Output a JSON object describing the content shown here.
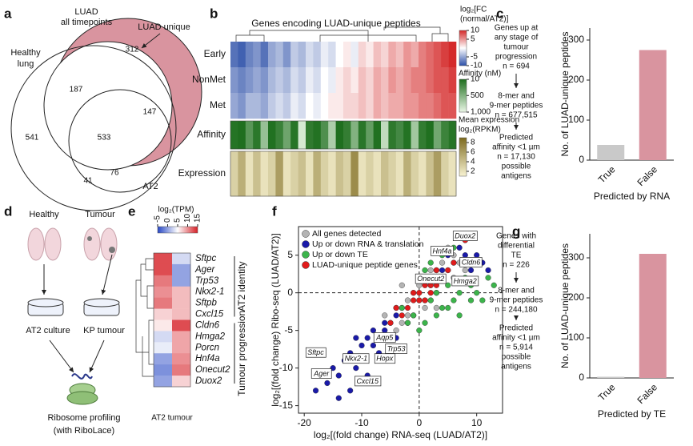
{
  "panels": {
    "a": {
      "label": "a",
      "luad_all": [
        "LUAD",
        "all timepoints"
      ],
      "luad_unique": "LUAD unique",
      "healthy": [
        "Healthy",
        "lung"
      ],
      "at2": "AT2",
      "counts": [
        312,
        187,
        147,
        533,
        541,
        41,
        76
      ]
    },
    "c": {
      "flow": [
        [
          "Genes up at",
          "any stage of",
          "tumour",
          "progression",
          "n = 694"
        ],
        [
          "8-mer and",
          "9-mer peptides",
          "n = 677,515"
        ],
        [
          "Predicted",
          "affinity <1 µm",
          "n = 17,130",
          "possible",
          "antigens"
        ]
      ]
    },
    "d": {
      "label": "d",
      "healthy": "Healthy",
      "tumour": "Tumour",
      "culture": "AT2 culture",
      "kp": "KP tumour",
      "profiling": [
        "Ribosome profiling",
        "(with RiboLace)"
      ]
    },
    "g": {
      "flow": [
        [
          "Genes with",
          "differential",
          "TE",
          "n = 226"
        ],
        [
          "8-mer and",
          "9-mer peptides",
          "n = 244,180"
        ],
        [
          "Predicted",
          "affinity <1 µm",
          "n = 5,914",
          "possible",
          "antigens"
        ]
      ]
    }
  },
  "chart_data": [
    {
      "panel": "b",
      "type": "heatmap",
      "title": "Genes encoding LUAD-unique peptides",
      "rows": [
        "Early",
        "NonMet",
        "Met"
      ],
      "values": [
        [
          -8,
          -9,
          -7,
          -6,
          -8,
          -5,
          -4,
          -6,
          -3,
          -4,
          -2,
          -3,
          -1,
          -2,
          0,
          1,
          -1,
          2,
          1,
          3,
          2,
          4,
          3,
          5,
          4,
          6,
          7,
          8,
          9,
          10
        ],
        [
          -6,
          -7,
          -6,
          -5,
          -6,
          -4,
          -3,
          -4,
          -2,
          -3,
          -1,
          -2,
          0,
          -1,
          1,
          2,
          1,
          3,
          2,
          4,
          3,
          5,
          4,
          5,
          6,
          6,
          7,
          8,
          8,
          9
        ],
        [
          -5,
          -6,
          -4,
          -4,
          -5,
          -3,
          -2,
          -3,
          -1,
          -2,
          0,
          -1,
          0,
          1,
          1,
          2,
          2,
          3,
          2,
          4,
          3,
          4,
          4,
          5,
          5,
          6,
          6,
          7,
          8,
          8
        ]
      ],
      "scale": {
        "title": [
          "log₂[FC",
          "(normal/AT2)]"
        ],
        "lim": [
          -10,
          10
        ],
        "ticks": [
          10,
          5,
          -5,
          -10
        ],
        "colors": [
          "#2c4fa8",
          "#ffffff",
          "#d42a2a"
        ]
      },
      "tracks": [
        {
          "label": "Affinity",
          "values": [
            50,
            20,
            300,
            80,
            600,
            30,
            150,
            400,
            60,
            900,
            100,
            40,
            250,
            700,
            20,
            120,
            500,
            70,
            350,
            30,
            800,
            90,
            200,
            45,
            650,
            110,
            25,
            420,
            160,
            60
          ],
          "scale": {
            "title": [
              "Affinity (nM)"
            ],
            "lim": [
              10,
              1000
            ],
            "ticks": [
              10,
              500,
              {
                "value": 1000,
                "label": "1,000"
              }
            ],
            "colors": [
              "#1d6e1d",
              "#eaf7e6"
            ]
          }
        },
        {
          "label": "Expression",
          "values": [
            3,
            5,
            2,
            4,
            2,
            3,
            6,
            2,
            3,
            4,
            2,
            5,
            3,
            2,
            4,
            3,
            7,
            2,
            3,
            2,
            4,
            3,
            2,
            5,
            3,
            2,
            4,
            6,
            3,
            2
          ],
          "scale": {
            "title": [
              "Mean expression",
              "log₂(RPKM)"
            ],
            "lim": [
              1,
              9
            ],
            "ticks": [
              8,
              6,
              4,
              2
            ],
            "colors": [
              "#f8f3d2",
              "#7d6a1e"
            ]
          }
        }
      ]
    },
    {
      "panel": "c",
      "type": "bar",
      "categories": [
        "True",
        "False"
      ],
      "values": [
        38,
        275
      ],
      "colors": [
        "#c9c9c9",
        "#d9949f"
      ],
      "ylim": [
        0,
        330
      ],
      "yticks": [
        0,
        100,
        200,
        300
      ],
      "ylabel": "No. of LUAD-unique peptides",
      "xlabel": "Predicted by RNA"
    },
    {
      "panel": "e",
      "type": "heatmap",
      "title": "log₂(TPM)",
      "column_label": "AT2 tumour",
      "rows": [
        "Sftpc",
        "Ager",
        "Trp53",
        "Nkx2-1",
        "Sftpb",
        "Cxcl15",
        "Cldn6",
        "Hmga2",
        "Porcn",
        "Hnf4a",
        "Onecut2",
        "Duox2"
      ],
      "values": [
        [
          13,
          3
        ],
        [
          13,
          0
        ],
        [
          11,
          0
        ],
        [
          10,
          8
        ],
        [
          11,
          8
        ],
        [
          7,
          8
        ],
        [
          6,
          13
        ],
        [
          3,
          9
        ],
        [
          4,
          9
        ],
        [
          0,
          10
        ],
        [
          -1,
          11
        ],
        [
          0,
          7
        ]
      ],
      "scale": {
        "lim": [
          -5,
          15
        ],
        "ticks": [
          -5,
          0,
          5,
          10,
          15
        ],
        "colors": [
          "#2747c4",
          "#ffffff",
          "#d61f26"
        ]
      },
      "groups": [
        "AT2 identity",
        "Tumour progression"
      ]
    },
    {
      "panel": "f",
      "type": "scatter",
      "xlabel": "log₂[(fold change) RNA-seq (LUAD/AT2)]",
      "ylabel": "log₂[(fold change) Ribo-seq (LUAD/AT2)]",
      "xlim": [
        -21,
        14.5
      ],
      "ylim": [
        -16,
        8.8
      ],
      "xticks": [
        -20,
        -10,
        0,
        10
      ],
      "yticks": [
        -15,
        -10,
        -5,
        0,
        5
      ],
      "series": [
        {
          "name": "All genes detected",
          "color": "#b4b4b4",
          "x": [
            -6,
            -5,
            -4,
            -3,
            -2,
            -1,
            0,
            1,
            2,
            3,
            4,
            5,
            6,
            -3,
            -2,
            1,
            2,
            3,
            -1,
            0,
            4,
            5,
            7,
            8,
            -4,
            2,
            3,
            -2,
            6,
            1
          ],
          "y": [
            -3,
            -6,
            -2,
            -4,
            -1,
            -3,
            1,
            2,
            -1,
            2,
            4,
            3,
            5,
            1,
            -4,
            -2,
            3,
            0,
            0,
            -1,
            2,
            6,
            4,
            3,
            -5,
            1,
            -2,
            -3,
            2,
            -1
          ]
        },
        {
          "name": "Up or down RNA & translation",
          "color": "#1a1aa8",
          "x": [
            -18,
            -16,
            -15,
            -14,
            -13,
            -12,
            -11,
            -10,
            -10,
            -9,
            -8,
            -8,
            -7,
            -6,
            -6,
            -5,
            -4,
            -4,
            -3,
            3,
            4,
            5,
            6,
            7,
            8,
            8,
            9,
            10,
            11,
            12,
            -12,
            -9,
            -7,
            -11,
            -14
          ],
          "y": [
            -13,
            -12,
            -10,
            -11,
            -9,
            -8,
            -10,
            -7,
            -9,
            -6,
            -7,
            -5,
            -8,
            -5,
            -4,
            -4,
            -3,
            -6,
            -2,
            3,
            3,
            5,
            4,
            6,
            5,
            7,
            3,
            5,
            4,
            3,
            -13,
            -11,
            -9,
            -6,
            -14
          ]
        },
        {
          "name": "Up or down TE",
          "color": "#3cb44b",
          "x": [
            2,
            3,
            4,
            5,
            6,
            7,
            8,
            9,
            10,
            11,
            12,
            13,
            1,
            2,
            -1,
            -2,
            -3,
            0,
            1,
            3,
            5,
            7,
            9,
            4,
            6
          ],
          "y": [
            -1,
            0,
            -2,
            1,
            -1,
            0,
            2,
            1,
            0,
            -1,
            2,
            1,
            3,
            4,
            -3,
            -4,
            -2,
            -5,
            -4,
            -3,
            -2,
            -3,
            -1,
            5,
            6
          ]
        },
        {
          "name": "LUAD-unique peptide genes",
          "color": "#e01b1b",
          "x": [
            0,
            1,
            2,
            3,
            -1,
            -2,
            1,
            2,
            3,
            4,
            -3,
            -4,
            2,
            5,
            6,
            -1,
            0,
            8,
            3,
            -5
          ],
          "y": [
            0,
            1,
            2,
            1,
            -1,
            -2,
            -1,
            0,
            3,
            2,
            -3,
            -2,
            1,
            3,
            4,
            0,
            -1,
            7,
            2,
            -4
          ]
        }
      ],
      "annotations": [
        {
          "text": "Duox2",
          "x": 8,
          "y": 7.5
        },
        {
          "text": "Hnf4a",
          "x": 4,
          "y": 5.5
        },
        {
          "text": "Cldn6",
          "x": 9,
          "y": 4
        },
        {
          "text": "Onecut2",
          "x": 2,
          "y": 1.8
        },
        {
          "text": "Hmga2",
          "x": 8,
          "y": 1.5
        },
        {
          "text": "Aqp5",
          "x": -6,
          "y": -6
        },
        {
          "text": "Trp53",
          "x": -4,
          "y": -7.5
        },
        {
          "text": "Hopx",
          "x": -6,
          "y": -8.8
        },
        {
          "text": "Nkx2-1",
          "x": -11,
          "y": -8.8
        },
        {
          "text": "Sftpc",
          "x": -18,
          "y": -8
        },
        {
          "text": "Ager",
          "x": -17,
          "y": -10.8
        },
        {
          "text": "Cxcl15",
          "x": -9,
          "y": -11.8
        }
      ]
    },
    {
      "panel": "g",
      "type": "bar",
      "categories": [
        "True",
        "False"
      ],
      "values": [
        3,
        310
      ],
      "colors": [
        "#c9c9c9",
        "#d9949f"
      ],
      "ylim": [
        0,
        360
      ],
      "yticks": [
        0,
        100,
        200,
        300
      ],
      "ylabel": "No. of LUAD-unique peptides",
      "xlabel": "Predicted by TE"
    }
  ]
}
